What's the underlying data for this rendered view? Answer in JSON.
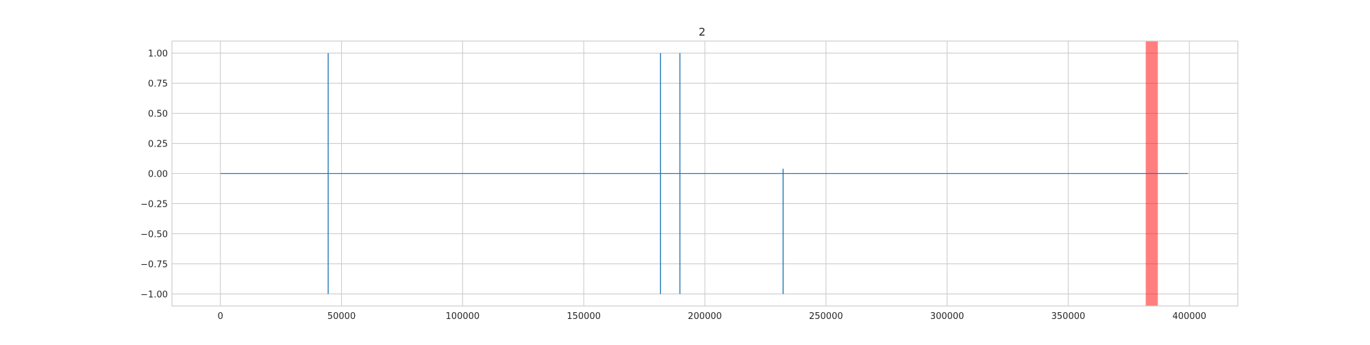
{
  "chart_data": {
    "type": "line",
    "title": "2",
    "xlabel": "",
    "ylabel": "",
    "xlim": [
      -20000,
      420000
    ],
    "ylim": [
      -1.1,
      1.1
    ],
    "xticks": [
      0,
      50000,
      100000,
      150000,
      200000,
      250000,
      300000,
      350000,
      400000
    ],
    "xtick_labels": [
      "0",
      "50000",
      "100000",
      "150000",
      "200000",
      "250000",
      "300000",
      "350000",
      "400000"
    ],
    "yticks": [
      1.0,
      0.75,
      0.5,
      0.25,
      0.0,
      -0.25,
      -0.5,
      -0.75,
      -1.0
    ],
    "ytick_labels": [
      "1.00",
      "0.75",
      "0.50",
      "0.25",
      "0.00",
      "−0.25",
      "−0.50",
      "−0.75",
      "−1.00"
    ],
    "grid": true,
    "series": [
      {
        "color": "#1f77b4",
        "x_range": [
          0,
          399500
        ],
        "baseline": 0.0,
        "spikes": [
          {
            "x": 44500,
            "min": -1.0,
            "max": 1.0
          },
          {
            "x": 181700,
            "min": -1.0,
            "max": 1.0
          },
          {
            "x": 189700,
            "min": -1.0,
            "max": 1.0
          },
          {
            "x": 232300,
            "min": -1.0,
            "max": 0.04
          }
        ]
      }
    ],
    "highlight_spans": [
      {
        "x_start": 382000,
        "x_end": 387000,
        "color": "#ff0000",
        "opacity": 0.5
      }
    ]
  }
}
